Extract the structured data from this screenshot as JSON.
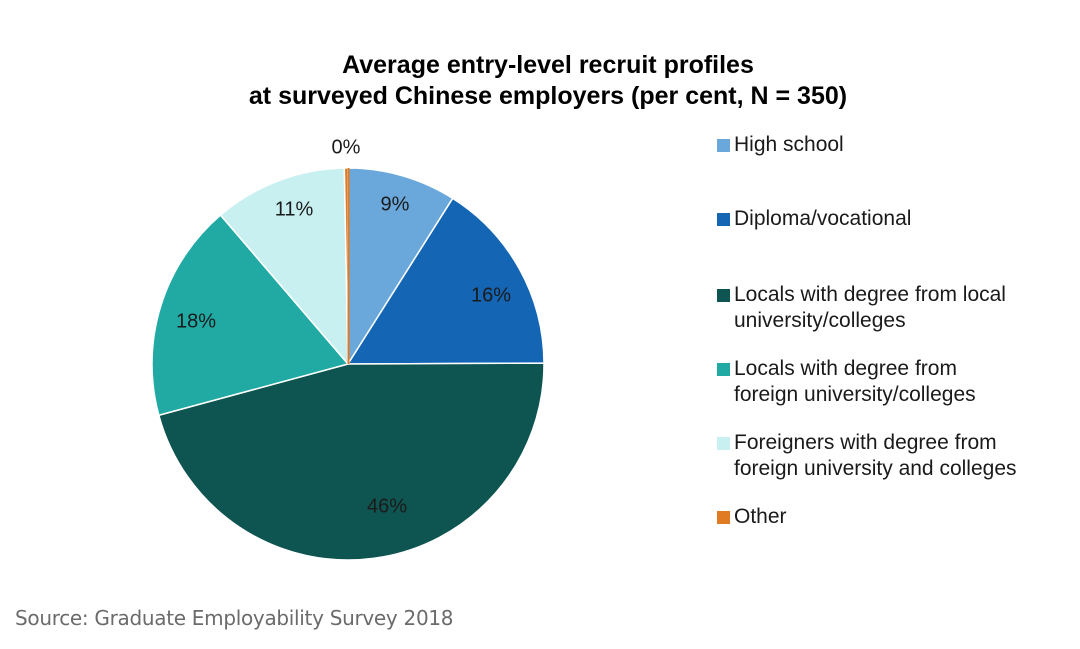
{
  "chart_data": {
    "type": "pie",
    "title_lines": [
      "Average entry-level recruit profiles",
      "at surveyed Chinese employers (per cent, N = 350)"
    ],
    "legend_position": "right",
    "slices": [
      {
        "legend_lines": [
          "High school"
        ],
        "value": 9,
        "label": "9%",
        "color": "#6aa8dc"
      },
      {
        "legend_lines": [
          "Diploma/vocational"
        ],
        "value": 16,
        "label": "16%",
        "color": "#1565b5"
      },
      {
        "legend_lines": [
          "Locals with degree from local",
          "university/colleges"
        ],
        "value": 46,
        "label": "46%",
        "color": "#0e5450"
      },
      {
        "legend_lines": [
          "Locals with degree from",
          "foreign university/colleges"
        ],
        "value": 18,
        "label": "18%",
        "color": "#21a9a4"
      },
      {
        "legend_lines": [
          "Foreigners with degree from",
          "foreign university and colleges"
        ],
        "value": 11,
        "label": "11%",
        "color": "#c9f0f0"
      },
      {
        "legend_lines": [
          "Other"
        ],
        "value": 0.3,
        "label": "0%",
        "color": "#e07b24"
      }
    ]
  },
  "source": "Source: Graduate Employability Survey 2018"
}
